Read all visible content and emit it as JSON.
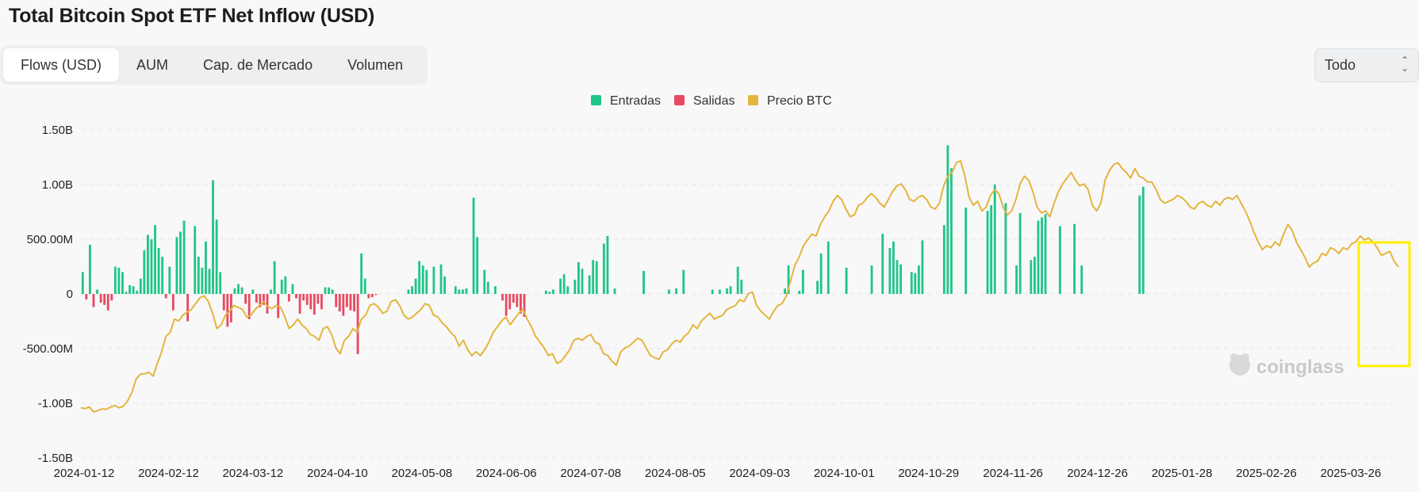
{
  "title": "Total Bitcoin Spot ETF Net Inflow (USD)",
  "tabs": [
    {
      "label": "Flows (USD)",
      "active": true
    },
    {
      "label": "AUM",
      "active": false
    },
    {
      "label": "Cap. de Mercado",
      "active": false
    },
    {
      "label": "Volumen",
      "active": false
    }
  ],
  "range_select": {
    "value": "Todo"
  },
  "watermark": "coinglass",
  "colors": {
    "inflow": "#1fc588",
    "outflow": "#e84a61",
    "price": "#e3b53d",
    "highlight": "#ffee00"
  },
  "chart_data": {
    "type": "bar",
    "legend": [
      {
        "name": "Entradas",
        "color": "#1fc588"
      },
      {
        "name": "Salidas",
        "color": "#e84a61"
      },
      {
        "name": "Precio BTC",
        "color": "#e3b53d"
      }
    ],
    "legend_position": "top-center",
    "grid": true,
    "y_ticks": [
      "1.50B",
      "1.00B",
      "500.00M",
      "0",
      "-500.00M",
      "-1.00B",
      "-1.50B"
    ],
    "ylim": [
      -1500,
      1500
    ],
    "x_ticks": [
      "2024-01-12",
      "2024-02-12",
      "2024-03-12",
      "2024-04-10",
      "2024-05-08",
      "2024-06-06",
      "2024-07-08",
      "2024-08-05",
      "2024-09-03",
      "2024-10-01",
      "2024-10-29",
      "2024-11-26",
      "2024-12-26",
      "2025-01-28",
      "2025-02-26",
      "2025-03-26"
    ],
    "series": [
      {
        "name": "Entradas",
        "unit": "M USD",
        "values": [
          200,
          0,
          450,
          0,
          40,
          0,
          0,
          0,
          0,
          250,
          240,
          200,
          20,
          80,
          70,
          30,
          140,
          400,
          540,
          500,
          630,
          420,
          340,
          0,
          250,
          0,
          520,
          570,
          670,
          0,
          0,
          620,
          340,
          240,
          480,
          230,
          1040,
          680,
          200,
          0,
          0,
          0,
          50,
          90,
          60,
          0,
          0,
          40,
          0,
          0,
          0,
          0,
          40,
          300,
          0,
          130,
          160,
          0,
          90,
          0,
          0,
          0,
          0,
          0,
          0,
          0,
          0,
          60,
          60,
          40,
          0,
          0,
          0,
          0,
          0,
          0,
          0,
          370,
          140,
          0,
          0,
          0,
          0,
          0,
          0,
          0,
          0,
          0,
          0,
          0,
          40,
          70,
          140,
          300,
          260,
          220,
          0,
          250,
          0,
          270,
          160,
          0,
          0,
          70,
          40,
          40,
          50,
          0,
          880,
          520,
          0,
          220,
          110,
          0,
          70,
          0,
          0,
          0,
          0,
          0,
          0,
          0,
          0,
          0,
          0,
          0,
          0,
          0,
          30,
          20,
          40,
          0,
          140,
          180,
          70,
          0,
          130,
          290,
          230,
          0,
          170,
          310,
          300,
          0,
          460,
          530,
          0,
          50,
          0,
          0,
          0,
          0,
          0,
          0,
          0,
          210,
          0,
          0,
          0,
          0,
          0,
          0,
          40,
          0,
          50,
          0,
          220,
          0,
          0,
          0,
          0,
          0,
          0,
          0,
          40,
          0,
          40,
          0,
          50,
          70,
          0,
          250,
          130,
          0,
          0,
          0,
          0,
          0,
          0,
          0,
          0,
          0,
          0,
          0,
          50,
          260,
          0,
          0,
          30,
          220,
          0,
          0,
          0,
          120,
          370,
          0,
          480,
          0,
          0,
          0,
          0,
          240,
          0,
          0,
          0,
          0,
          0,
          0,
          260,
          0,
          0,
          550,
          0,
          420,
          480,
          310,
          270,
          0,
          0,
          200,
          190,
          260,
          490,
          0,
          0,
          0,
          0,
          0,
          630,
          1360,
          1150,
          0,
          0,
          0,
          790,
          0,
          0,
          0,
          0,
          0,
          760,
          810,
          1000,
          0,
          0,
          830,
          0,
          0,
          260,
          740,
          0,
          0,
          310,
          340,
          670,
          700,
          730,
          0,
          0,
          0,
          620,
          0,
          0,
          0,
          640,
          0,
          260,
          0,
          0,
          0,
          0,
          0,
          0,
          0,
          0,
          0,
          0,
          0,
          0,
          0,
          0,
          0,
          900,
          980,
          0,
          0,
          0,
          0,
          0,
          0,
          0,
          0,
          0,
          0,
          0,
          0,
          0,
          0,
          0,
          0,
          0,
          0,
          0,
          0,
          0,
          0,
          0,
          0,
          0,
          0,
          0,
          0,
          0,
          0,
          0,
          0,
          0,
          0,
          0,
          0,
          0,
          0,
          0,
          0,
          0,
          0,
          0,
          0,
          0,
          0,
          0,
          0,
          0,
          0,
          0,
          0,
          0,
          0,
          0,
          0,
          0,
          0,
          0,
          0,
          0,
          0,
          0,
          0,
          0,
          0,
          0,
          0,
          0,
          0
        ]
      },
      {
        "name": "Salidas",
        "unit": "M USD",
        "values": [
          0,
          -50,
          0,
          -120,
          0,
          -80,
          -100,
          -150,
          -60,
          0,
          0,
          0,
          0,
          0,
          0,
          0,
          0,
          0,
          0,
          0,
          0,
          0,
          0,
          -40,
          0,
          -150,
          0,
          0,
          0,
          -250,
          0,
          0,
          0,
          0,
          0,
          0,
          0,
          0,
          0,
          -150,
          -300,
          -260,
          0,
          0,
          0,
          -90,
          -230,
          0,
          -80,
          -120,
          -100,
          -180,
          0,
          0,
          -220,
          0,
          0,
          -70,
          0,
          -40,
          -180,
          -60,
          -100,
          -140,
          -190,
          -90,
          -140,
          0,
          0,
          0,
          -120,
          -160,
          -200,
          -120,
          -150,
          -160,
          -550,
          0,
          0,
          -40,
          -30,
          -10,
          0,
          0,
          0,
          0,
          0,
          0,
          0,
          0,
          0,
          0,
          0,
          0,
          0,
          0,
          0,
          0,
          0,
          0,
          0,
          0,
          0,
          0,
          0,
          0,
          0,
          0,
          0,
          0,
          0,
          0,
          0,
          0,
          0,
          0,
          -60,
          -200,
          -140,
          -80,
          -120,
          -180,
          -210,
          0,
          0,
          0,
          0,
          0,
          0,
          0,
          0,
          0,
          0,
          0,
          0,
          0,
          0,
          0,
          0,
          0,
          0,
          0,
          0,
          0,
          0,
          0,
          0,
          0,
          0,
          0,
          0,
          0,
          0,
          0,
          0,
          0,
          0,
          0,
          0,
          0,
          0,
          0,
          0,
          0,
          0,
          0,
          0,
          0,
          0,
          0,
          0,
          0,
          0,
          0,
          0,
          0,
          0,
          0,
          0,
          0,
          0,
          0,
          0,
          0,
          0,
          0,
          0,
          0,
          0,
          0,
          0,
          0,
          0,
          0,
          0,
          0,
          0,
          0,
          0,
          0,
          0,
          0,
          0,
          0,
          0,
          0,
          0,
          0,
          0,
          0,
          0,
          0,
          0,
          0,
          0,
          0,
          0,
          0,
          0,
          0,
          0,
          0,
          0,
          0,
          0,
          0,
          0,
          0,
          0,
          0,
          0,
          0,
          0,
          0,
          0,
          0,
          0,
          0,
          0,
          0,
          0,
          0,
          0,
          0,
          0,
          0,
          0,
          0,
          0,
          0,
          0,
          0,
          0,
          0,
          0,
          0,
          0,
          0,
          0,
          0,
          0,
          0,
          0,
          0,
          0,
          0,
          0,
          0,
          0,
          0,
          0,
          0,
          0,
          0,
          0,
          0,
          0,
          0,
          0,
          0,
          0,
          0,
          0,
          0,
          0,
          0,
          0,
          0,
          0,
          0,
          0,
          0,
          0,
          0,
          0,
          0,
          0,
          0,
          0,
          0,
          0,
          0,
          0,
          0,
          0,
          0,
          0,
          0,
          0,
          0,
          0,
          0,
          0,
          0,
          0,
          0,
          0,
          0,
          0,
          0,
          0,
          0,
          0,
          0,
          0,
          0,
          0,
          0,
          0,
          0,
          0,
          0,
          0,
          0,
          0,
          0,
          0,
          0,
          0,
          0,
          0,
          0,
          0,
          0,
          0,
          0,
          0,
          0,
          0,
          0,
          0,
          0
        ]
      }
    ],
    "price_series": {
      "name": "Precio BTC",
      "values": [
        43000,
        42800,
        43200,
        41900,
        42300,
        42700,
        42600,
        43200,
        43600,
        43000,
        43400,
        44800,
        47000,
        50500,
        51700,
        51800,
        52200,
        51200,
        54500,
        57500,
        61500,
        62500,
        66000,
        65500,
        67000,
        67800,
        68500,
        70000,
        71500,
        72000,
        70500,
        67500,
        63500,
        64500,
        67000,
        68000,
        69500,
        69000,
        68500,
        66500,
        67000,
        68500,
        69500,
        70500,
        69200,
        68700,
        69500,
        69000,
        66500,
        63500,
        64500,
        66000,
        64500,
        63500,
        62000,
        61500,
        60500,
        63500,
        64000,
        62000,
        58500,
        57000,
        60500,
        61500,
        63500,
        62500,
        66000,
        67000,
        69500,
        70000,
        69000,
        67500,
        68000,
        70500,
        71000,
        69500,
        67000,
        66000,
        66500,
        67500,
        68500,
        70000,
        69500,
        67000,
        66500,
        65000,
        64000,
        62500,
        61500,
        59000,
        60500,
        58000,
        56500,
        57500,
        56500,
        58000,
        60000,
        62500,
        64000,
        65500,
        66500,
        64500,
        66000,
        67500,
        68500,
        66000,
        64000,
        61500,
        60000,
        58500,
        56500,
        57000,
        54500,
        55000,
        56500,
        58000,
        60500,
        61000,
        60500,
        61500,
        62000,
        60000,
        59500,
        57000,
        56500,
        55000,
        54000,
        57500,
        58500,
        59000,
        60000,
        61000,
        60500,
        58500,
        56500,
        56000,
        55500,
        57500,
        58000,
        59500,
        60500,
        60000,
        61500,
        62500,
        64500,
        63500,
        65500,
        66500,
        67500,
        66000,
        66500,
        67000,
        68500,
        69000,
        69500,
        71000,
        70500,
        72500,
        73000,
        69500,
        68000,
        67000,
        66000,
        68000,
        69500,
        70000,
        72000,
        76000,
        80000,
        82000,
        85000,
        86500,
        88000,
        87500,
        90500,
        92500,
        94000,
        96500,
        98000,
        97000,
        94500,
        92500,
        93000,
        95500,
        96000,
        97500,
        98500,
        97500,
        96000,
        95000,
        97000,
        99000,
        100500,
        101000,
        99500,
        97000,
        96500,
        97500,
        98000,
        97000,
        95000,
        94500,
        96000,
        100500,
        103000,
        104000,
        106500,
        107000,
        103000,
        97500,
        95500,
        96500,
        94000,
        95000,
        98000,
        99500,
        98500,
        95000,
        93000,
        94000,
        97000,
        101000,
        103000,
        102000,
        99000,
        95000,
        93500,
        94000,
        92500,
        96000,
        99000,
        101000,
        102500,
        104000,
        102000,
        100500,
        101000,
        99500,
        95500,
        94000,
        96000,
        102000,
        104500,
        106000,
        106500,
        105000,
        104000,
        102500,
        105000,
        103000,
        102500,
        101500,
        101500,
        99500,
        97000,
        96000,
        96500,
        97000,
        98000,
        97500,
        96500,
        95000,
        94500,
        96000,
        96500,
        95500,
        95000,
        96500,
        95500,
        97000,
        97500,
        97000,
        98000,
        96000,
        94000,
        91500,
        88500,
        86000,
        84000,
        85000,
        84500,
        86000,
        85000,
        88000,
        90500,
        89000,
        86000,
        84000,
        82000,
        79500,
        80500,
        81000,
        83000,
        82500,
        84500,
        84000,
        83000,
        84500,
        84000,
        85500,
        86000,
        87500,
        86500,
        87000,
        86000,
        84500,
        82500,
        83000,
        83500,
        81000,
        79500
      ]
    },
    "annotation": "yellow box highlighting 2025-03-26 onward"
  }
}
